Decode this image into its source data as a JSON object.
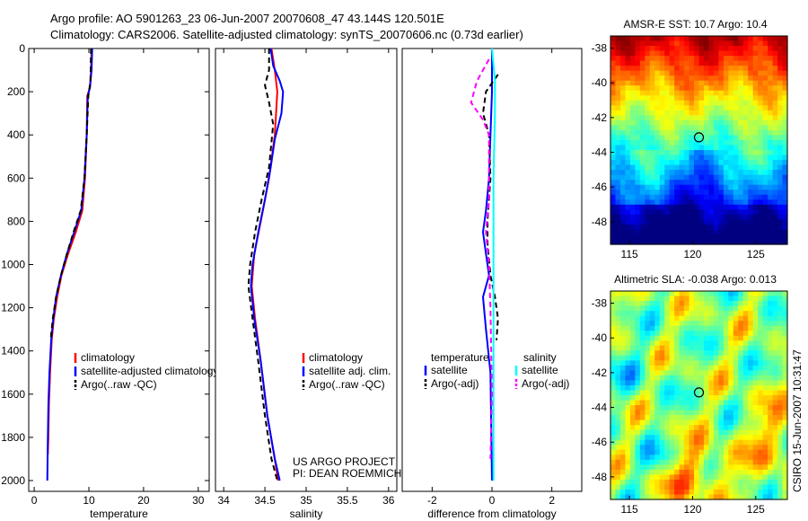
{
  "header": {
    "title_line1": "Argo profile: AO 5901263_23 06-Jun-2007 20070608_47 43.144S 120.501E",
    "title_line2": "Climatology: CARS2006. Satellite-adjusted climatology: synTS_20070606.nc (0.73d earlier)"
  },
  "credits": {
    "line1": "US ARGO PROJECT",
    "line2": "PI: DEAN ROEMMICH"
  },
  "stamp": "CSIRO 15-Jun-2007 10:31:47",
  "colors": {
    "climatology": "#ff0000",
    "satellite": "#0000ff",
    "argo": "#000000",
    "sal_satellite": "#00ffff",
    "sal_argo": "#ff00ff"
  },
  "chart_data": [
    {
      "type": "line",
      "id": "temperature",
      "xlabel": "temperature",
      "ylabel": "",
      "xlim": [
        -1,
        32
      ],
      "ylim": [
        2050,
        0
      ],
      "xticks": [
        "0",
        "10",
        "20",
        "30"
      ],
      "xtick_values": [
        0,
        10,
        20,
        30
      ],
      "yticks": [
        "0",
        "200",
        "400",
        "600",
        "800",
        "1000",
        "1200",
        "1400",
        "1600",
        "1800",
        "2000"
      ],
      "ytick_values": [
        0,
        200,
        400,
        600,
        800,
        1000,
        1200,
        1400,
        1600,
        1800,
        2000
      ],
      "legend": [
        "climatology",
        "satellite-adjusted climatology",
        "Argo(..raw -QC)"
      ],
      "series": [
        {
          "name": "climatology",
          "color": "#ff0000",
          "dash": "",
          "points": [
            [
              10.5,
              0
            ],
            [
              10.4,
              100
            ],
            [
              10.2,
              180
            ],
            [
              9.7,
              220
            ],
            [
              9.6,
              400
            ],
            [
              9.3,
              600
            ],
            [
              8.8,
              750
            ],
            [
              7.6,
              850
            ],
            [
              6.2,
              950
            ],
            [
              5.0,
              1050
            ],
            [
              4.2,
              1150
            ],
            [
              3.6,
              1250
            ],
            [
              3.2,
              1350
            ],
            [
              2.9,
              1500
            ],
            [
              2.7,
              1650
            ],
            [
              2.6,
              1800
            ],
            [
              2.5,
              1880
            ]
          ]
        },
        {
          "name": "satellite-adjusted climatology",
          "color": "#0000ff",
          "dash": "",
          "points": [
            [
              10.6,
              0
            ],
            [
              10.5,
              100
            ],
            [
              10.2,
              180
            ],
            [
              9.8,
              220
            ],
            [
              9.6,
              400
            ],
            [
              9.2,
              600
            ],
            [
              8.6,
              750
            ],
            [
              7.3,
              850
            ],
            [
              6.0,
              950
            ],
            [
              4.9,
              1050
            ],
            [
              4.0,
              1150
            ],
            [
              3.5,
              1250
            ],
            [
              3.1,
              1350
            ],
            [
              2.8,
              1500
            ],
            [
              2.6,
              1650
            ],
            [
              2.5,
              1800
            ],
            [
              2.4,
              2000
            ]
          ]
        },
        {
          "name": "Argo(..raw -QC)",
          "color": "#000000",
          "dash": "6 4",
          "points": [
            [
              10.4,
              0
            ],
            [
              10.3,
              150
            ],
            [
              9.9,
              220
            ],
            [
              9.6,
              400
            ],
            [
              9.2,
              600
            ],
            [
              8.5,
              750
            ],
            [
              7.2,
              850
            ],
            [
              6.0,
              950
            ],
            [
              4.9,
              1050
            ],
            [
              4.0,
              1150
            ],
            [
              3.4,
              1250
            ],
            [
              3.0,
              1350
            ]
          ]
        }
      ]
    },
    {
      "type": "line",
      "id": "salinity",
      "xlabel": "salinity",
      "ylabel": "",
      "xlim": [
        33.9,
        36.1
      ],
      "ylim": [
        2050,
        0
      ],
      "xticks": [
        "34",
        "34.5",
        "35",
        "35.5",
        "36"
      ],
      "xtick_values": [
        34,
        34.5,
        35,
        35.5,
        36
      ],
      "yticks": [],
      "ytick_values": [],
      "legend": [
        "climatology",
        "satellite adj. clim.",
        "Argo(..raw -QC)"
      ],
      "series": [
        {
          "name": "climatology",
          "color": "#ff0000",
          "dash": "",
          "points": [
            [
              34.58,
              0
            ],
            [
              34.62,
              100
            ],
            [
              34.65,
              200
            ],
            [
              34.62,
              400
            ],
            [
              34.55,
              600
            ],
            [
              34.45,
              800
            ],
            [
              34.37,
              950
            ],
            [
              34.34,
              1100
            ],
            [
              34.38,
              1250
            ],
            [
              34.45,
              1450
            ],
            [
              34.53,
              1700
            ],
            [
              34.62,
              1900
            ],
            [
              34.66,
              2000
            ]
          ]
        },
        {
          "name": "satellite adj. clim.",
          "color": "#0000ff",
          "dash": "",
          "points": [
            [
              34.57,
              0
            ],
            [
              34.6,
              80
            ],
            [
              34.68,
              150
            ],
            [
              34.72,
              200
            ],
            [
              34.7,
              300
            ],
            [
              34.62,
              420
            ],
            [
              34.57,
              550
            ],
            [
              34.5,
              700
            ],
            [
              34.42,
              850
            ],
            [
              34.35,
              1000
            ],
            [
              34.33,
              1100
            ],
            [
              34.37,
              1250
            ],
            [
              34.45,
              1450
            ],
            [
              34.53,
              1700
            ],
            [
              34.62,
              1900
            ],
            [
              34.68,
              2000
            ]
          ]
        },
        {
          "name": "Argo(..raw -QC)",
          "color": "#000000",
          "dash": "6 4",
          "points": [
            [
              34.55,
              0
            ],
            [
              34.55,
              100
            ],
            [
              34.5,
              170
            ],
            [
              34.55,
              250
            ],
            [
              34.6,
              350
            ],
            [
              34.55,
              550
            ],
            [
              34.46,
              700
            ],
            [
              34.38,
              850
            ],
            [
              34.32,
              1000
            ],
            [
              34.3,
              1100
            ],
            [
              34.35,
              1250
            ],
            [
              34.42,
              1450
            ],
            [
              34.5,
              1700
            ],
            [
              34.58,
              1900
            ],
            [
              34.65,
              2000
            ]
          ]
        }
      ]
    },
    {
      "type": "line",
      "id": "difference",
      "xlabel": "difference from climatology",
      "ylabel": "",
      "xlim": [
        -3,
        3
      ],
      "ylim": [
        2050,
        0
      ],
      "xticks": [
        "-2",
        "0",
        "2"
      ],
      "xtick_values": [
        -2,
        0,
        2
      ],
      "yticks": [],
      "ytick_values": [],
      "legend_left_title": "temperature",
      "legend_right_title": "salinity",
      "legend_left": [
        "satellite",
        "Argo(-adj)"
      ],
      "legend_right": [
        "satellite",
        "Argo(-adj)"
      ],
      "series": [
        {
          "name": "temperature satellite",
          "color": "#0000ff",
          "dash": "",
          "points": [
            [
              0.0,
              0
            ],
            [
              0.0,
              200
            ],
            [
              -0.05,
              400
            ],
            [
              -0.1,
              600
            ],
            [
              -0.2,
              750
            ],
            [
              -0.3,
              850
            ],
            [
              -0.2,
              950
            ],
            [
              -0.1,
              1050
            ],
            [
              -0.3,
              1150
            ],
            [
              -0.2,
              1300
            ],
            [
              -0.05,
              1500
            ],
            [
              0.0,
              2000
            ]
          ]
        },
        {
          "name": "temperature Argo(-adj)",
          "color": "#000000",
          "dash": "6 4",
          "points": [
            [
              0.2,
              120
            ],
            [
              -0.2,
              200
            ],
            [
              -0.3,
              300
            ],
            [
              -0.1,
              400
            ],
            [
              -0.05,
              600
            ],
            [
              -0.15,
              800
            ],
            [
              -0.15,
              900
            ],
            [
              -0.05,
              1050
            ],
            [
              0.1,
              1150
            ],
            [
              0.2,
              1250
            ],
            [
              0.15,
              1350
            ]
          ]
        },
        {
          "name": "salinity satellite",
          "color": "#00ffff",
          "dash": "",
          "points": [
            [
              0.0,
              0
            ],
            [
              0.1,
              150
            ],
            [
              0.1,
              300
            ],
            [
              0.05,
              600
            ],
            [
              0.05,
              1000
            ],
            [
              0.05,
              1400
            ],
            [
              0.05,
              2000
            ]
          ]
        },
        {
          "name": "salinity Argo(-adj)",
          "color": "#ff00ff",
          "dash": "6 4",
          "points": [
            [
              -0.1,
              50
            ],
            [
              -0.5,
              150
            ],
            [
              -0.7,
              250
            ],
            [
              -0.3,
              330
            ],
            [
              -0.1,
              400
            ],
            [
              -0.1,
              700
            ],
            [
              -0.2,
              850
            ],
            [
              -0.1,
              1000
            ],
            [
              -0.05,
              1200
            ],
            [
              0.0,
              1600
            ],
            [
              -0.05,
              1900
            ]
          ]
        }
      ]
    },
    {
      "type": "heatmap",
      "id": "sst_map",
      "title": "AMSR-E SST: 10.7 Argo: 10.4",
      "xlim": [
        113.5,
        127.5
      ],
      "ylim": [
        -49.3,
        -37.3
      ],
      "xticks": [
        "115",
        "120",
        "125"
      ],
      "xtick_values": [
        115,
        120,
        125
      ],
      "yticks": [
        "-38",
        "-40",
        "-42",
        "-44",
        "-46",
        "-48"
      ],
      "ytick_values": [
        -38,
        -40,
        -42,
        -44,
        -46,
        -48
      ],
      "marker": [
        120.5,
        -43.14
      ]
    },
    {
      "type": "heatmap",
      "id": "sla_map",
      "title": "Altimetric SLA: -0.038 Argo: 0.013",
      "xlim": [
        113.5,
        127.5
      ],
      "ylim": [
        -49.3,
        -37.3
      ],
      "xticks": [
        "115",
        "120",
        "125"
      ],
      "xtick_values": [
        115,
        120,
        125
      ],
      "yticks": [
        "-38",
        "-40",
        "-42",
        "-44",
        "-46",
        "-48"
      ],
      "ytick_values": [
        -38,
        -40,
        -42,
        -44,
        -46,
        -48
      ],
      "marker": [
        120.5,
        -43.14
      ]
    }
  ]
}
